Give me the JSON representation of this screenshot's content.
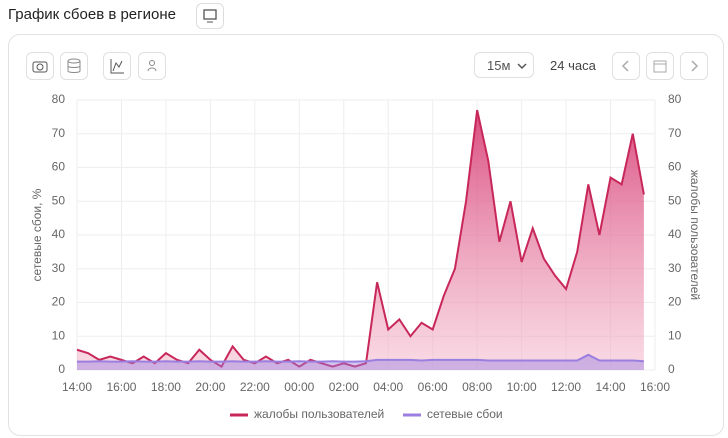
{
  "header": {
    "title": "График сбоев в регионе"
  },
  "toolbar": {
    "interval": "15м",
    "range": "24 часа"
  },
  "chart_data": {
    "type": "line",
    "y_label": "сетевые сбои, %",
    "y2_label": "жалобы пользователей",
    "x": [
      14,
      14.5,
      15,
      15.5,
      16,
      16.5,
      17,
      17.5,
      18,
      18.5,
      19,
      19.5,
      20,
      20.5,
      21,
      21.5,
      22,
      22.5,
      23,
      23.5,
      24,
      24.5,
      25,
      25.5,
      26,
      26.5,
      27,
      27.5,
      28,
      28.5,
      29,
      29.5,
      30,
      30.5,
      31,
      31.5,
      32,
      32.5,
      33,
      33.5,
      34,
      34.5,
      35,
      35.5,
      36,
      36.5,
      37,
      37.5,
      38,
      38.5,
      39,
      39.5
    ],
    "xlim": [
      14,
      40
    ],
    "xticks": [
      {
        "value": 14,
        "label": "14:00"
      },
      {
        "value": 16,
        "label": "16:00"
      },
      {
        "value": 18,
        "label": "18:00"
      },
      {
        "value": 20,
        "label": "20:00"
      },
      {
        "value": 22,
        "label": "22:00"
      },
      {
        "value": 24,
        "label": "00:00"
      },
      {
        "value": 26,
        "label": "02:00"
      },
      {
        "value": 28,
        "label": "04:00"
      },
      {
        "value": 30,
        "label": "06:00"
      },
      {
        "value": 32,
        "label": "08:00"
      },
      {
        "value": 34,
        "label": "10:00"
      },
      {
        "value": 36,
        "label": "12:00"
      },
      {
        "value": 38,
        "label": "14:00"
      },
      {
        "value": 40,
        "label": "16:00"
      }
    ],
    "ylim": [
      0,
      80
    ],
    "yticks": [
      0,
      10,
      20,
      30,
      40,
      50,
      60,
      70,
      80
    ],
    "y2lim": [
      0,
      80
    ],
    "y2ticks": [
      0,
      10,
      20,
      30,
      40,
      50,
      60,
      70,
      80
    ],
    "grid": true,
    "series": [
      {
        "name": "жалобы пользователей",
        "color": "#c8275a",
        "axis": "y2",
        "values": [
          6,
          5,
          3,
          4,
          3,
          2,
          4,
          2,
          5,
          3,
          2,
          6,
          3,
          1,
          7,
          3,
          2,
          4,
          2,
          3,
          1,
          3,
          2,
          1,
          2,
          1,
          2,
          26,
          12,
          15,
          10,
          14,
          12,
          22,
          30,
          50,
          77,
          62,
          38,
          50,
          32,
          42,
          33,
          28,
          24,
          35,
          55,
          40,
          57,
          55,
          70,
          52
        ]
      },
      {
        "name": "сетевые сбои",
        "color": "#9b7fe0",
        "values": [
          2.5,
          2.5,
          2.6,
          2.5,
          2.5,
          2.6,
          2.5,
          2.5,
          2.6,
          2.5,
          2.5,
          2.6,
          2.5,
          2.5,
          2.6,
          2.5,
          2.5,
          2.6,
          2.5,
          2.5,
          2.6,
          2.5,
          2.5,
          2.6,
          2.5,
          2.5,
          2.6,
          3,
          3,
          3,
          3,
          2.8,
          3,
          3,
          3,
          3,
          3,
          2.8,
          2.8,
          2.8,
          2.8,
          2.8,
          2.8,
          2.8,
          2.8,
          2.8,
          4.5,
          2.8,
          2.8,
          2.8,
          2.8,
          2.6
        ]
      }
    ]
  }
}
